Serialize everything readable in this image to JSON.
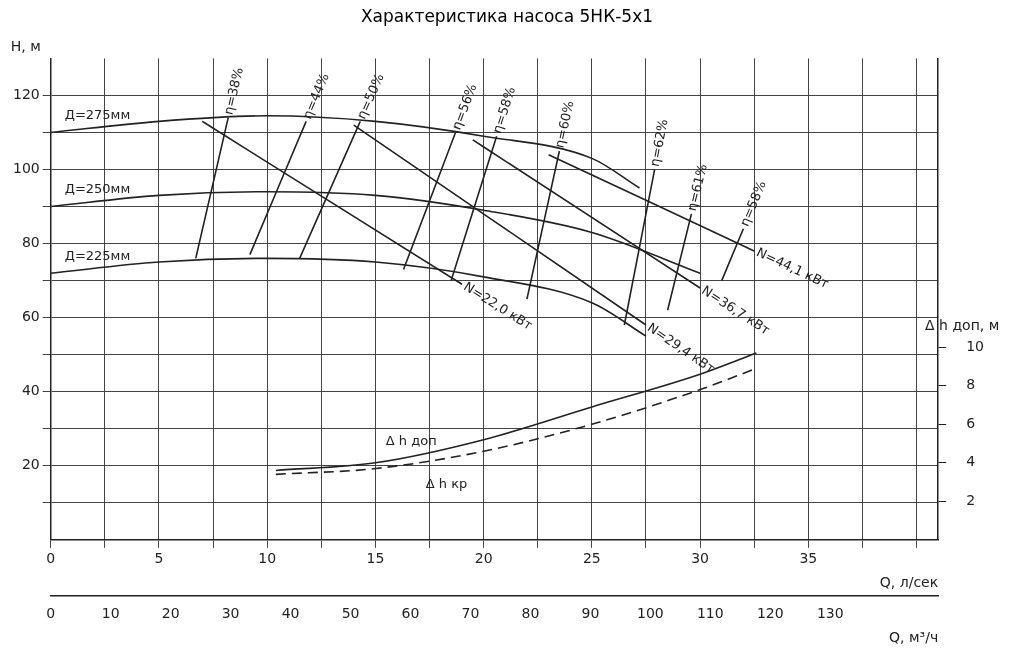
{
  "chart_data": {
    "type": "line",
    "title": "Характеристика насоса 5НК-5х1",
    "xlabel": "Q, л/сек",
    "ylabel": "H, м",
    "y2label": "Δ h доп, м",
    "x2label": "Q, м³/ч",
    "xlim": [
      0,
      41
    ],
    "xticks": [
      0,
      {
        "value": 2.5,
        "label": null
      },
      5,
      {
        "value": 7.5,
        "label": null
      },
      10,
      {
        "value": 12.5,
        "label": null
      },
      15,
      {
        "value": 17.5,
        "label": null
      },
      20,
      {
        "value": 22.5,
        "label": null
      },
      25,
      {
        "value": 27.5,
        "label": null
      },
      30,
      {
        "value": 32.5,
        "label": null
      },
      35,
      {
        "value": 37.5,
        "label": null
      },
      {
        "value": 40,
        "label": null
      }
    ],
    "ylim": [
      0,
      130
    ],
    "yticks": [
      {
        "value": 10,
        "label": null
      },
      20,
      {
        "value": 30,
        "label": null
      },
      40,
      {
        "value": 50,
        "label": null
      },
      60,
      {
        "value": 70,
        "label": null
      },
      80,
      {
        "value": 90,
        "label": null
      },
      100,
      {
        "value": 110,
        "label": null
      },
      120
    ],
    "y2lim": [
      0,
      25
    ],
    "y2ticks": [
      2,
      4,
      6,
      8,
      10
    ],
    "x2lim": [
      0,
      148
    ],
    "x2ticks": [
      0,
      10,
      20,
      30,
      40,
      50,
      60,
      70,
      80,
      90,
      100,
      110,
      120,
      130
    ],
    "grid": true,
    "legend": false,
    "marker": "none",
    "line_style": "solid",
    "series": [
      {
        "name": "Д=275мм",
        "color": "#222222",
        "x": [
          0,
          5,
          10,
          15,
          20,
          25,
          27.2
        ],
        "values": [
          110,
          113,
          114.5,
          113,
          109,
          103,
          95
        ]
      },
      {
        "name": "Д=250мм",
        "color": "#222222",
        "x": [
          0,
          5,
          10,
          15,
          20,
          25,
          30
        ],
        "values": [
          90,
          93,
          94,
          93,
          89,
          83,
          72
        ]
      },
      {
        "name": "Д=225мм",
        "color": "#222222",
        "x": [
          0,
          5,
          10,
          15,
          20,
          25,
          27.5
        ],
        "values": [
          72,
          75,
          76,
          75,
          71,
          64,
          55
        ]
      },
      {
        "name": "η=38%",
        "color": "#222222",
        "x": [
          6.7,
          8.2
        ],
        "values": [
          76,
          114
        ]
      },
      {
        "name": "η=44%",
        "color": "#222222",
        "x": [
          9.2,
          11.8
        ],
        "values": [
          77,
          113
        ]
      },
      {
        "name": "η=50%",
        "color": "#222222",
        "x": [
          11.5,
          14.3
        ],
        "values": [
          76,
          113
        ]
      },
      {
        "name": "η=56%",
        "color": "#222222",
        "x": [
          16.3,
          18.7
        ],
        "values": [
          73,
          110
        ]
      },
      {
        "name": "η=58%",
        "color": "#222222",
        "x": [
          18.5,
          20.6
        ],
        "values": [
          70,
          109
        ]
      },
      {
        "name": "η=60%",
        "color": "#222222",
        "x": [
          22.0,
          23.5
        ],
        "values": [
          65,
          105
        ]
      },
      {
        "name": "η=62%",
        "color": "#222222",
        "x": [
          26.5,
          27.9
        ],
        "values": [
          58,
          100
        ]
      },
      {
        "name": "η=61%",
        "color": "#222222",
        "x": [
          28.5,
          29.6
        ],
        "values": [
          62,
          88
        ]
      },
      {
        "name": "η=58%",
        "color": "#222222",
        "x": [
          31.0,
          32.0
        ],
        "values": [
          70,
          84
        ]
      },
      {
        "name": "N=22,0 кВт",
        "color": "#222222",
        "x": [
          7,
          19
        ],
        "values": [
          113,
          69
        ]
      },
      {
        "name": "N=29,4 кВт",
        "color": "#222222",
        "x": [
          14,
          27.5
        ],
        "values": [
          112,
          58
        ]
      },
      {
        "name": "N=36,7 кВт",
        "color": "#222222",
        "x": [
          19.5,
          30
        ],
        "values": [
          108,
          68
        ]
      },
      {
        "name": "N=44,1 кВт",
        "color": "#222222",
        "x": [
          23,
          32.5
        ],
        "values": [
          104,
          78
        ]
      },
      {
        "name": "Δ h доп",
        "color": "#222222",
        "axis": "y2",
        "x": [
          10.4,
          15,
          20,
          25,
          30,
          32.6
        ],
        "values": [
          3.6,
          4.0,
          5.2,
          6.9,
          8.6,
          9.7
        ]
      },
      {
        "name": "Δ h кр",
        "color": "#222222",
        "axis": "y2",
        "line_style": "dashed",
        "x": [
          10.4,
          15,
          20,
          25,
          30,
          32.6
        ],
        "values": [
          3.4,
          3.7,
          4.6,
          6.0,
          7.8,
          8.9
        ]
      }
    ]
  }
}
